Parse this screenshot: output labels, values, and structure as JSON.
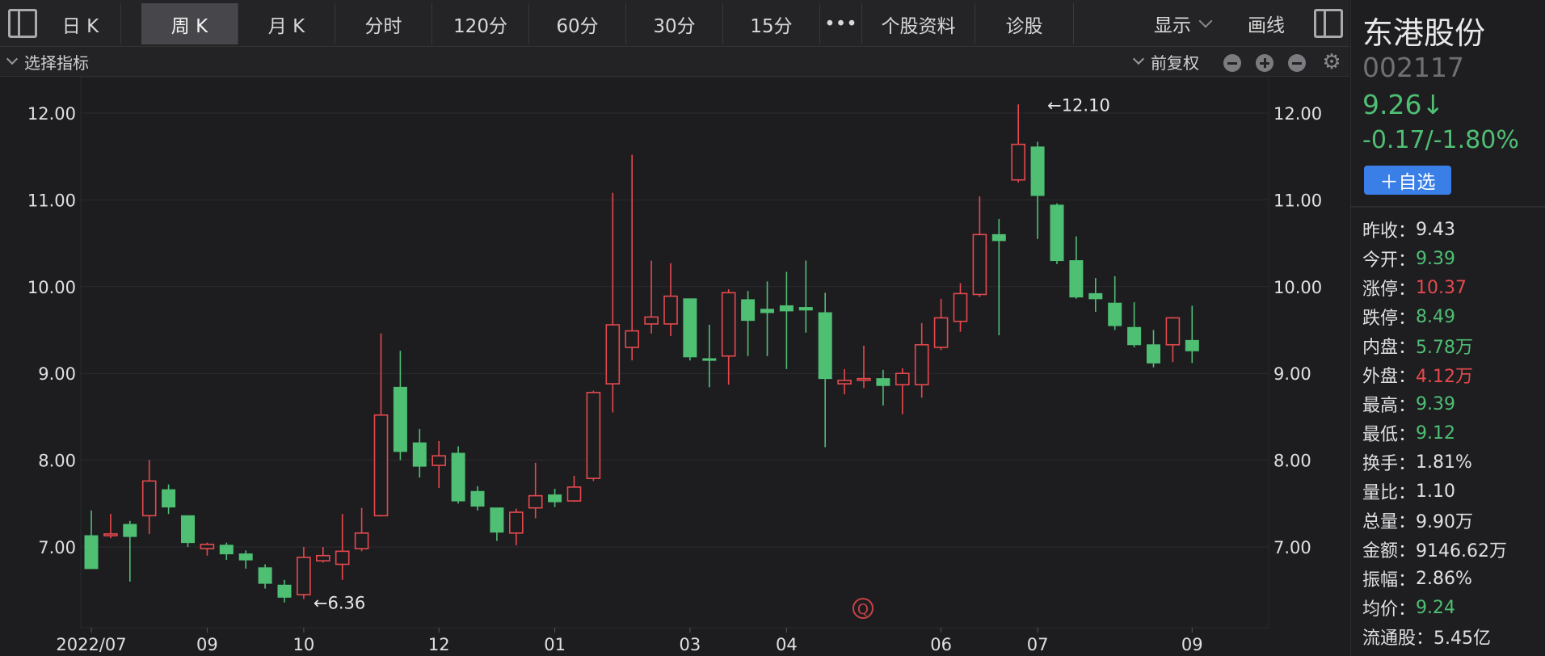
{
  "toolbar": {
    "tabs": [
      {
        "label": "日 K"
      },
      {
        "label": "周 K"
      },
      {
        "label": "月 K"
      },
      {
        "label": "分时"
      },
      {
        "label": "120分"
      },
      {
        "label": "60分"
      },
      {
        "label": "30分"
      },
      {
        "label": "15分"
      },
      {
        "label": "•••"
      },
      {
        "label": "个股资料"
      },
      {
        "label": "诊股"
      }
    ],
    "active_tab": "周 K",
    "display_label": "显示",
    "draw_label": "画线"
  },
  "indicator_bar": {
    "select_label": "选择指标",
    "adjust_label": "前复权"
  },
  "stock": {
    "name": "东港股份",
    "code": "002117",
    "price": "9.26↓",
    "change": "-0.17/-1.80%",
    "watch_label": "＋自选",
    "colors": {
      "up": "#e5494d",
      "down": "#4fbf73",
      "accent": "#3a7fe8"
    },
    "stats": [
      {
        "label": "昨收：",
        "value": "9.43",
        "tone": "neutral"
      },
      {
        "label": "今开：",
        "value": "9.39",
        "tone": "green"
      },
      {
        "label": "涨停：",
        "value": "10.37",
        "tone": "red"
      },
      {
        "label": "跌停：",
        "value": "8.49",
        "tone": "green"
      },
      {
        "label": "内盘：",
        "value": "5.78万",
        "tone": "green"
      },
      {
        "label": "外盘：",
        "value": "4.12万",
        "tone": "red"
      },
      {
        "label": "最高：",
        "value": "9.39",
        "tone": "green"
      },
      {
        "label": "最低：",
        "value": "9.12",
        "tone": "green"
      },
      {
        "label": "换手：",
        "value": "1.81%",
        "tone": "neutral"
      },
      {
        "label": "量比：",
        "value": "1.10",
        "tone": "neutral"
      },
      {
        "label": "总量：",
        "value": "9.90万",
        "tone": "neutral"
      },
      {
        "label": "金额：",
        "value": "9146.62万",
        "tone": "neutral"
      },
      {
        "label": "振幅：",
        "value": "2.86%",
        "tone": "neutral"
      },
      {
        "label": "均价：",
        "value": "9.24",
        "tone": "green"
      },
      {
        "label": "流通股：",
        "value": "5.45亿",
        "tone": "neutral"
      }
    ]
  },
  "chart_data": {
    "type": "candlestick",
    "y_ticks": [
      "12.00",
      "11.00",
      "10.00",
      "9.00",
      "8.00",
      "7.00"
    ],
    "ylim": [
      6.0,
      12.4
    ],
    "x_ticks": [
      "2022/07",
      "09",
      "10",
      "12",
      "01",
      "03",
      "04",
      "06",
      "07",
      "09"
    ],
    "x_tick_index": [
      0,
      6,
      11,
      18,
      24,
      31,
      36,
      44,
      49,
      57
    ],
    "annotations": [
      {
        "text": "←12.10",
        "index": 49,
        "value": 12.1
      },
      {
        "text": "←6.36",
        "index": 11,
        "value": 6.36
      }
    ],
    "watermark": "Q",
    "candles": [
      [
        7.13,
        6.75,
        7.42,
        6.75
      ],
      [
        7.13,
        7.15,
        7.38,
        7.1
      ],
      [
        7.26,
        7.12,
        7.3,
        6.6
      ],
      [
        7.36,
        7.76,
        8.0,
        7.15
      ],
      [
        7.66,
        7.46,
        7.72,
        7.38
      ],
      [
        7.36,
        7.05,
        7.36,
        7.0
      ],
      [
        6.98,
        7.03,
        7.05,
        6.9
      ],
      [
        7.02,
        6.92,
        7.05,
        6.85
      ],
      [
        6.92,
        6.85,
        6.96,
        6.75
      ],
      [
        6.76,
        6.58,
        6.8,
        6.52
      ],
      [
        6.56,
        6.42,
        6.62,
        6.36
      ],
      [
        6.45,
        6.88,
        7.0,
        6.4
      ],
      [
        6.84,
        6.9,
        7.0,
        6.82
      ],
      [
        6.8,
        6.95,
        7.38,
        6.62
      ],
      [
        6.98,
        7.16,
        7.45,
        6.95
      ],
      [
        7.36,
        8.52,
        9.46,
        7.35
      ],
      [
        8.84,
        8.1,
        9.26,
        8.0
      ],
      [
        8.2,
        7.93,
        8.36,
        7.8
      ],
      [
        7.94,
        8.05,
        8.22,
        7.68
      ],
      [
        8.08,
        7.53,
        8.16,
        7.5
      ],
      [
        7.64,
        7.47,
        7.7,
        7.42
      ],
      [
        7.45,
        7.17,
        7.45,
        7.07
      ],
      [
        7.16,
        7.4,
        7.44,
        7.02
      ],
      [
        7.45,
        7.59,
        7.97,
        7.33
      ],
      [
        7.6,
        7.52,
        7.67,
        7.46
      ],
      [
        7.53,
        7.69,
        7.82,
        7.52
      ],
      [
        7.79,
        8.78,
        8.8,
        7.76
      ],
      [
        8.88,
        9.56,
        11.08,
        8.55
      ],
      [
        9.3,
        9.49,
        11.52,
        9.15
      ],
      [
        9.57,
        9.65,
        10.3,
        9.46
      ],
      [
        9.57,
        9.89,
        10.27,
        9.43
      ],
      [
        9.86,
        9.19,
        9.86,
        9.15
      ],
      [
        9.17,
        9.15,
        9.56,
        8.84
      ],
      [
        9.2,
        9.93,
        9.97,
        8.87
      ],
      [
        9.85,
        9.61,
        9.95,
        9.2
      ],
      [
        9.74,
        9.7,
        10.06,
        9.2
      ],
      [
        9.78,
        9.72,
        10.17,
        9.05
      ],
      [
        9.76,
        9.73,
        10.3,
        9.47
      ],
      [
        9.7,
        8.94,
        9.93,
        8.15
      ],
      [
        8.88,
        8.92,
        9.05,
        8.76
      ],
      [
        8.93,
        8.94,
        9.32,
        8.83
      ],
      [
        8.94,
        8.86,
        9.04,
        8.63
      ],
      [
        8.87,
        9.0,
        9.06,
        8.53
      ],
      [
        8.87,
        9.33,
        9.58,
        8.72
      ],
      [
        9.3,
        9.64,
        9.86,
        9.27
      ],
      [
        9.6,
        9.92,
        10.04,
        9.48
      ],
      [
        9.91,
        10.6,
        11.04,
        9.88
      ],
      [
        10.6,
        10.53,
        10.78,
        9.44
      ],
      [
        11.23,
        11.64,
        12.1,
        11.2
      ],
      [
        11.61,
        11.05,
        11.67,
        10.55
      ],
      [
        10.94,
        10.3,
        10.96,
        10.26
      ],
      [
        10.3,
        9.88,
        10.58,
        9.86
      ],
      [
        9.92,
        9.86,
        10.1,
        9.71
      ],
      [
        9.81,
        9.55,
        10.12,
        9.5
      ],
      [
        9.53,
        9.33,
        9.82,
        9.3
      ],
      [
        9.33,
        9.12,
        9.5,
        9.07
      ],
      [
        9.33,
        9.64,
        9.65,
        9.13
      ],
      [
        9.38,
        9.26,
        9.78,
        9.12
      ]
    ]
  }
}
